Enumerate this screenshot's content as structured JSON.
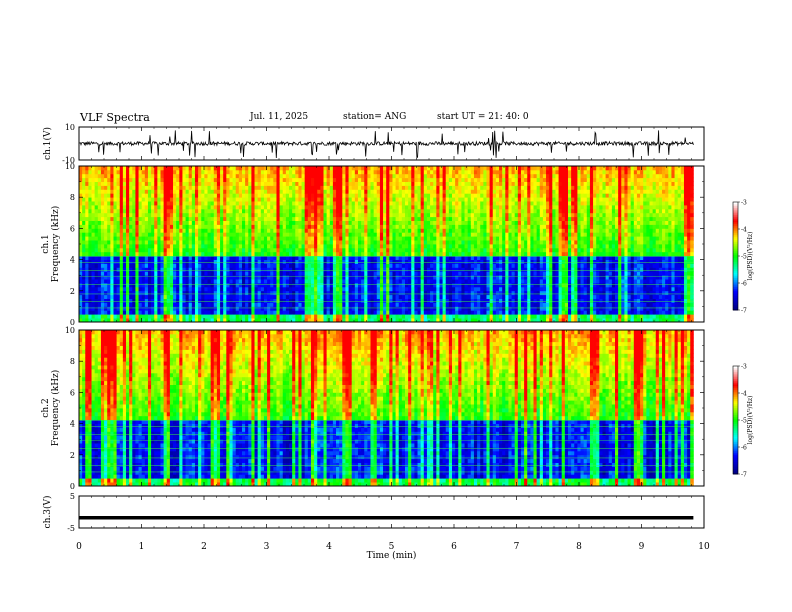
{
  "header": {
    "title": "VLF Spectra",
    "date": "Jul. 11, 2025",
    "station": "station= ANG",
    "start": "start UT = 21: 40: 0"
  },
  "chart_data": [
    {
      "type": "line",
      "ylabel": "ch.1(V)",
      "xlim": [
        0,
        10
      ],
      "ylim": [
        -10,
        10
      ],
      "y_ticks": [
        "10",
        "-10"
      ],
      "trace_color": "#000000",
      "note": "noisy waveform near 0 V with impulsive spikes"
    },
    {
      "type": "heatmap",
      "ylabel": "ch.1\nFrequency (kHz)",
      "xlim": [
        0,
        10
      ],
      "ylim": [
        0,
        10
      ],
      "y_ticks": [
        "0",
        "2",
        "4",
        "6",
        "8",
        "10"
      ],
      "data_end_min": 9.83,
      "colorbar": {
        "label": "log(PSD)(V²/Hz)",
        "range": [
          -7,
          -3
        ],
        "ticks": [
          "-3",
          "-4",
          "-5",
          "-6",
          "-7"
        ],
        "colormap": [
          "#000080",
          "#0000ff",
          "#00ffff",
          "#00ff00",
          "#ffff00",
          "#ff0000",
          "#ffffff"
        ]
      }
    },
    {
      "type": "heatmap",
      "ylabel": "ch.2\nFrequency (kHz)",
      "xlim": [
        0,
        10
      ],
      "ylim": [
        0,
        10
      ],
      "y_ticks": [
        "0",
        "2",
        "4",
        "6",
        "8",
        "10"
      ],
      "data_end_min": 9.83,
      "colorbar": {
        "label": "log(PSD)(V²/Hz)",
        "range": [
          -7,
          -3
        ],
        "ticks": [
          "-3",
          "-4",
          "-5",
          "-6",
          "-7"
        ],
        "colormap": [
          "#000080",
          "#0000ff",
          "#00ffff",
          "#00ff00",
          "#ffff00",
          "#ff0000",
          "#ffffff"
        ]
      }
    },
    {
      "type": "line",
      "ylabel": "ch.3(V)",
      "xlim": [
        0,
        10
      ],
      "ylim": [
        -5,
        5
      ],
      "y_ticks": [
        "5",
        "-5"
      ],
      "constant_value": -1.8,
      "data_end_min": 9.83,
      "trace_color": "#000000"
    }
  ],
  "xaxis": {
    "label": "Time (min)",
    "ticks": [
      "0",
      "1",
      "2",
      "3",
      "4",
      "5",
      "6",
      "7",
      "8",
      "9",
      "10"
    ]
  }
}
